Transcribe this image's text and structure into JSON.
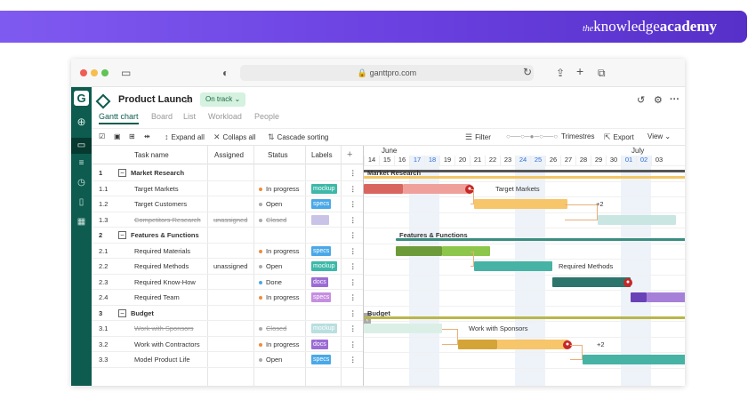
{
  "brand": {
    "the": "the",
    "knowledge": "knowledge",
    "academy": "academy"
  },
  "browser": {
    "url": "ganttpro.com"
  },
  "rail": {
    "logo": "G"
  },
  "project": {
    "title": "Product Launch",
    "status": "On track",
    "status_color": "#d5f1e0"
  },
  "tabs": [
    {
      "label": "Gantt chart",
      "active": true
    },
    {
      "label": "Board"
    },
    {
      "label": "List"
    },
    {
      "label": "Workload"
    },
    {
      "label": "People"
    }
  ],
  "toolbar": {
    "expand_all": "Expand all",
    "collapse_all": "Collaps all",
    "cascade_sorting": "Cascade sorting",
    "filter": "Filter",
    "scale": "Trimestres",
    "export": "Export",
    "view": "View"
  },
  "grid": {
    "headers": {
      "task": "Task name",
      "assigned": "Assigned",
      "status": "Status",
      "labels": "Labels",
      "add": "+"
    },
    "rows": [
      {
        "num": "1",
        "name": "Market Research",
        "group": true
      },
      {
        "num": "1.1",
        "name": "Target Markets",
        "assigned": "",
        "status": "In progress",
        "status_color": "#f08c3a",
        "label": "mockup",
        "label_color": "#3cb8a8"
      },
      {
        "num": "1.2",
        "name": "Target Customers",
        "assigned": "",
        "status": "Open",
        "status_color": "#aaaaaa",
        "label": "specs",
        "label_color": "#4aa8e8"
      },
      {
        "num": "1.3",
        "name": "Competitors Research",
        "assigned": "unassigned",
        "status": "Closed",
        "status_color": "#aaaaaa",
        "label": "",
        "label_color": "#c9c3e8",
        "struck": true
      },
      {
        "num": "2",
        "name": "Features & Functions",
        "group": true
      },
      {
        "num": "2.1",
        "name": "Required Materials",
        "assigned": "",
        "status": "In progress",
        "status_color": "#f08c3a",
        "label": "specs",
        "label_color": "#4aa8e8"
      },
      {
        "num": "2.2",
        "name": "Required Methods",
        "assigned": "unassigned",
        "status": "Open",
        "status_color": "#aaaaaa",
        "label": "mockup",
        "label_color": "#3cb8a8"
      },
      {
        "num": "2.3",
        "name": "Required Know-How",
        "assigned": "",
        "status": "Done",
        "status_color": "#4aa8e8",
        "label": "docs",
        "label_color": "#9b6bd6"
      },
      {
        "num": "2.4",
        "name": "Required Team",
        "assigned": "",
        "status": "In progress",
        "status_color": "#f08c3a",
        "label": "specs",
        "label_color": "#c58ee0"
      },
      {
        "num": "3",
        "name": "Budget",
        "group": true
      },
      {
        "num": "3.1",
        "name": "Work with Sponsors",
        "assigned": "",
        "status": "Closed",
        "status_color": "#aaaaaa",
        "label": "mockup",
        "label_color": "#b9dfe0",
        "struck": true
      },
      {
        "num": "3.2",
        "name": "Work with Contractors",
        "assigned": "",
        "status": "In progress",
        "status_color": "#f08c3a",
        "label": "docs",
        "label_color": "#9b6bd6"
      },
      {
        "num": "3.3",
        "name": "Model Product Life",
        "assigned": "",
        "status": "Open",
        "status_color": "#aaaaaa",
        "label": "specs",
        "label_color": "#4aa8e8"
      }
    ]
  },
  "timeline": {
    "months": [
      "June",
      "July"
    ],
    "days": [
      "14",
      "15",
      "16",
      "17",
      "18",
      "19",
      "20",
      "21",
      "22",
      "23",
      "24",
      "25",
      "26",
      "27",
      "28",
      "29",
      "30",
      "01",
      "02",
      "03"
    ],
    "weekend_days": [
      "17",
      "18",
      "24",
      "25",
      "01",
      "02"
    ],
    "group_labels": [
      "Market Research",
      "Features & Functions",
      "Budget"
    ],
    "task_labels": [
      "Target Markets",
      "+2",
      "Required Methods",
      "Work with Sponsors",
      "+2"
    ]
  }
}
